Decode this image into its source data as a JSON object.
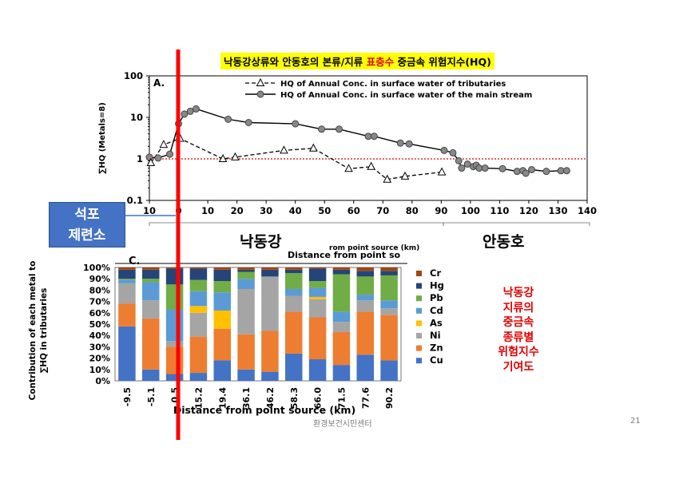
{
  "slide": {
    "title_part1": "낙동강상류와 안동호의 본류/지류 ",
    "title_highlight": "표층수",
    "title_part2": " 중금속 위험지수(HQ)",
    "callout_line1": "석포",
    "callout_line2": "제련소",
    "region_left": "낙동강",
    "region_right": "안동호",
    "side_note": [
      "낙동강",
      "지류의",
      "중금속",
      "종류별",
      "위험지수",
      "기여도"
    ],
    "footer": "환경보건시민센터",
    "page_number": "21",
    "colors": {
      "title_bg": "#ffff00",
      "highlight": "#e00000",
      "callout": "#4472c4",
      "marker_line": "#ff0000"
    }
  },
  "chart_data": [
    {
      "type": "line",
      "panel_label": "A.",
      "ylabel": "∑HQ (Metals=8)",
      "xlabel": "rom point source (km)",
      "scale_y": "log",
      "ylim": [
        0.1,
        100
      ],
      "xlim": [
        -10,
        140
      ],
      "x_ticks": [
        -10,
        0,
        10,
        20,
        30,
        40,
        50,
        60,
        70,
        80,
        90,
        100,
        110,
        120,
        130,
        140
      ],
      "x_tick_labels": [
        "10",
        "0",
        "10",
        "20",
        "30",
        "40",
        "50",
        "60",
        "70",
        "80",
        "90",
        "100",
        "110",
        "120",
        "130",
        "140"
      ],
      "y_ticks": [
        0.1,
        1,
        10,
        100
      ],
      "y_tick_labels": [
        "0.1",
        "1",
        "10",
        "100"
      ],
      "reference_line": {
        "y": 1,
        "color": "#e00000",
        "style": "dotted"
      },
      "legend_position": "top",
      "series": [
        {
          "name": "HQ of Annual Conc. in surface water of tributaries",
          "style": "dashed",
          "marker": "triangle-open",
          "x": [
            -9.5,
            -5.1,
            0.5,
            15.2,
            19.4,
            36.1,
            46.2,
            58.3,
            66.0,
            71.5,
            77.6,
            90.2
          ],
          "y": [
            0.8,
            2.2,
            3.1,
            1.0,
            1.1,
            1.6,
            1.8,
            0.58,
            0.65,
            0.32,
            0.38,
            0.48
          ]
        },
        {
          "name": "HQ of Annual Conc. in surface water of the main stream",
          "style": "solid",
          "marker": "circle-filled",
          "x": [
            -10,
            -7,
            -3,
            0,
            2,
            4,
            6,
            17,
            24,
            40,
            49,
            55,
            65,
            67,
            76,
            79,
            91,
            94,
            96,
            97,
            99,
            101,
            102,
            103,
            105,
            111,
            116,
            118,
            119,
            121,
            126,
            131,
            133
          ],
          "y": [
            1.1,
            1.05,
            1.3,
            7,
            12,
            14,
            16,
            9,
            7.5,
            7,
            5.2,
            5.2,
            3.5,
            3.5,
            2.4,
            2.3,
            1.6,
            1.4,
            0.9,
            0.6,
            0.75,
            0.65,
            0.7,
            0.6,
            0.6,
            0.58,
            0.5,
            0.52,
            0.45,
            0.55,
            0.5,
            0.52,
            0.52
          ]
        }
      ]
    },
    {
      "type": "bar",
      "stacked": true,
      "panel_label": "C.",
      "ylabel": "Contribution of each metal to ∑HQ in tributaries",
      "xlabel": "Distance from point source (km)",
      "axis_top_label": "Distance from point so",
      "ylim": [
        0,
        100
      ],
      "y_tick_labels": [
        "0%",
        "10%",
        "20%",
        "30%",
        "40%",
        "50%",
        "60%",
        "70%",
        "80%",
        "90%",
        "100%"
      ],
      "categories": [
        "-9.5",
        "-5.1",
        "0.5",
        "15.2",
        "19.4",
        "36.1",
        "46.2",
        "58.3",
        "66.0",
        "71.5",
        "77.6",
        "90.2"
      ],
      "legend_position": "right",
      "series": [
        {
          "name": "Cu",
          "color": "#4472c4",
          "values": [
            48,
            10,
            6,
            7,
            18,
            10,
            8,
            24,
            19,
            14,
            23,
            18
          ]
        },
        {
          "name": "Zn",
          "color": "#ed7d31",
          "values": [
            20,
            45,
            24,
            32,
            28,
            31,
            36,
            37,
            37,
            29,
            38,
            40
          ]
        },
        {
          "name": "Ni",
          "color": "#a5a5a5",
          "values": [
            18,
            16,
            5,
            21,
            0,
            40,
            48,
            14,
            16,
            9,
            10,
            6
          ]
        },
        {
          "name": "As",
          "color": "#ffc000",
          "values": [
            0,
            0,
            0,
            6,
            16,
            0,
            0,
            0,
            2,
            0,
            0,
            0
          ]
        },
        {
          "name": "Cd",
          "color": "#5b9bd5",
          "values": [
            3,
            16,
            28,
            13,
            16,
            9,
            0,
            6,
            8,
            9,
            5,
            7
          ]
        },
        {
          "name": "Pb",
          "color": "#70ad47",
          "values": [
            1,
            3,
            22,
            10,
            10,
            6,
            0,
            14,
            6,
            33,
            16,
            22
          ]
        },
        {
          "name": "Hg",
          "color": "#264478",
          "values": [
            8,
            8,
            14,
            10,
            10,
            2,
            6,
            3,
            11,
            4,
            5,
            4
          ]
        },
        {
          "name": "Cr",
          "color": "#9e480e",
          "values": [
            2,
            2,
            1,
            1,
            2,
            2,
            2,
            2,
            1,
            2,
            3,
            3
          ]
        }
      ]
    }
  ]
}
